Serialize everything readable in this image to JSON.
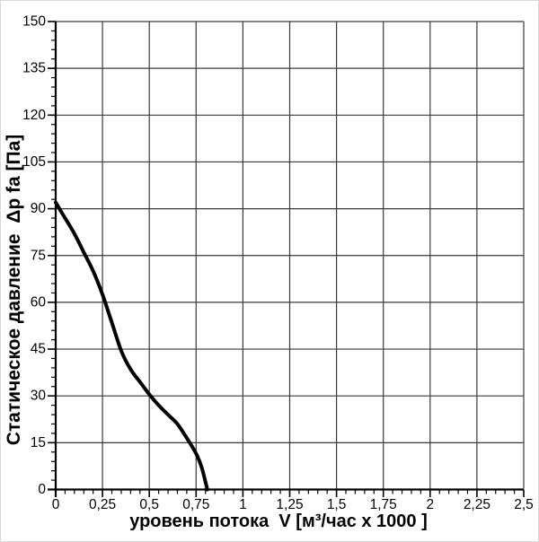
{
  "page": {
    "background": "#ffffff",
    "frame_border_color": "#d9d9d9"
  },
  "chart_data": {
    "type": "line",
    "title": "",
    "xlabel": "уровень потока  V [м³/час x 1000 ]",
    "ylabel": "Статическое давление  Δp fa [Па]",
    "xlim": [
      0,
      2.5
    ],
    "ylim": [
      0,
      150
    ],
    "x_major_step": 0.25,
    "x_minor_step": 0.05,
    "y_major_step": 15,
    "y_minor_step": 3,
    "x_tick_labels": [
      "0",
      "0,25",
      "0,5",
      "0,75",
      "1",
      "1,25",
      "1,5",
      "1,75",
      "2",
      "2,25",
      "2,5"
    ],
    "y_tick_labels": [
      "0",
      "15",
      "30",
      "45",
      "60",
      "75",
      "90",
      "105",
      "120",
      "135",
      "150"
    ],
    "grid": true,
    "legend": "none",
    "colors": {
      "grid": "#3a3a3a",
      "axis": "#000000",
      "curve": "#000000",
      "text": "#000000"
    },
    "series": [
      {
        "name": "static-pressure-curve",
        "points": [
          [
            0,
            92
          ],
          [
            0.05,
            87
          ],
          [
            0.1,
            82
          ],
          [
            0.15,
            76
          ],
          [
            0.2,
            70
          ],
          [
            0.25,
            62.5
          ],
          [
            0.3,
            53.5
          ],
          [
            0.35,
            44.5
          ],
          [
            0.4,
            38.5
          ],
          [
            0.45,
            34.5
          ],
          [
            0.5,
            30.5
          ],
          [
            0.55,
            27
          ],
          [
            0.6,
            24
          ],
          [
            0.65,
            21
          ],
          [
            0.7,
            16.5
          ],
          [
            0.75,
            11.5
          ],
          [
            0.78,
            7
          ],
          [
            0.81,
            0
          ]
        ]
      }
    ]
  }
}
